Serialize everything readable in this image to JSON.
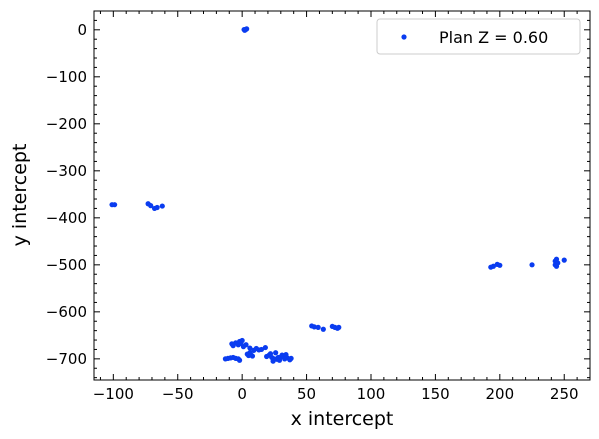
{
  "chart_data": {
    "type": "scatter",
    "xlabel": "x intercept",
    "ylabel": "y intercept",
    "xlim": [
      -115,
      270
    ],
    "ylim": [
      -745,
      40
    ],
    "x_ticks": [
      -100,
      -50,
      0,
      50,
      100,
      150,
      200,
      250
    ],
    "x_tick_labels": [
      "−100",
      "−50",
      "0",
      "50",
      "100",
      "150",
      "200",
      "250"
    ],
    "y_ticks": [
      0,
      -100,
      -200,
      -300,
      -400,
      -500,
      -600,
      -700
    ],
    "y_tick_labels": [
      "0",
      "−100",
      "−200",
      "−300",
      "−400",
      "−500",
      "−600",
      "−700"
    ],
    "grid": false,
    "legend_position": "top-right",
    "series": [
      {
        "name": "Plan Z = 0.60",
        "color": "#0a3cf0",
        "points": [
          [
            2,
            0
          ],
          [
            3,
            1
          ],
          [
            2,
            -1
          ],
          [
            3.5,
            2
          ],
          [
            1.5,
            0.5
          ],
          [
            -101,
            -372
          ],
          [
            -99,
            -372
          ],
          [
            -73,
            -370
          ],
          [
            -71,
            -374
          ],
          [
            -68,
            -380
          ],
          [
            -66,
            -378
          ],
          [
            -62,
            -375
          ],
          [
            193,
            -505
          ],
          [
            195,
            -503
          ],
          [
            198,
            -499
          ],
          [
            200,
            -501
          ],
          [
            225,
            -500
          ],
          [
            243,
            -492
          ],
          [
            244,
            -488
          ],
          [
            243,
            -500
          ],
          [
            245,
            -496
          ],
          [
            244,
            -503
          ],
          [
            250,
            -490
          ],
          [
            54,
            -630
          ],
          [
            56,
            -632
          ],
          [
            59,
            -633
          ],
          [
            63,
            -637
          ],
          [
            70,
            -631
          ],
          [
            72,
            -633
          ],
          [
            74,
            -635
          ],
          [
            75,
            -633
          ],
          [
            -13,
            -700
          ],
          [
            -11,
            -699
          ],
          [
            -9,
            -698
          ],
          [
            -7,
            -697
          ],
          [
            -5,
            -699
          ],
          [
            -3,
            -700
          ],
          [
            -2,
            -703
          ],
          [
            -8,
            -668
          ],
          [
            -7,
            -672
          ],
          [
            -5,
            -666
          ],
          [
            -3,
            -670
          ],
          [
            -2,
            -663
          ],
          [
            -1,
            -667
          ],
          [
            0,
            -661
          ],
          [
            1,
            -674
          ],
          [
            3,
            -670
          ],
          [
            4,
            -690
          ],
          [
            5,
            -693
          ],
          [
            6,
            -687
          ],
          [
            7,
            -692
          ],
          [
            8,
            -694
          ],
          [
            6,
            -677
          ],
          [
            9,
            -682
          ],
          [
            11,
            -678
          ],
          [
            13,
            -681
          ],
          [
            15,
            -680
          ],
          [
            18,
            -676
          ],
          [
            19,
            -695
          ],
          [
            21,
            -692
          ],
          [
            22,
            -689
          ],
          [
            23,
            -697
          ],
          [
            24,
            -705
          ],
          [
            25,
            -700
          ],
          [
            26,
            -687
          ],
          [
            27,
            -701
          ],
          [
            28,
            -697
          ],
          [
            29,
            -703
          ],
          [
            30,
            -696
          ],
          [
            31,
            -692
          ],
          [
            32,
            -694
          ],
          [
            33,
            -700
          ],
          [
            34,
            -691
          ],
          [
            35,
            -698
          ],
          [
            37,
            -702
          ],
          [
            38,
            -699
          ]
        ]
      }
    ]
  }
}
